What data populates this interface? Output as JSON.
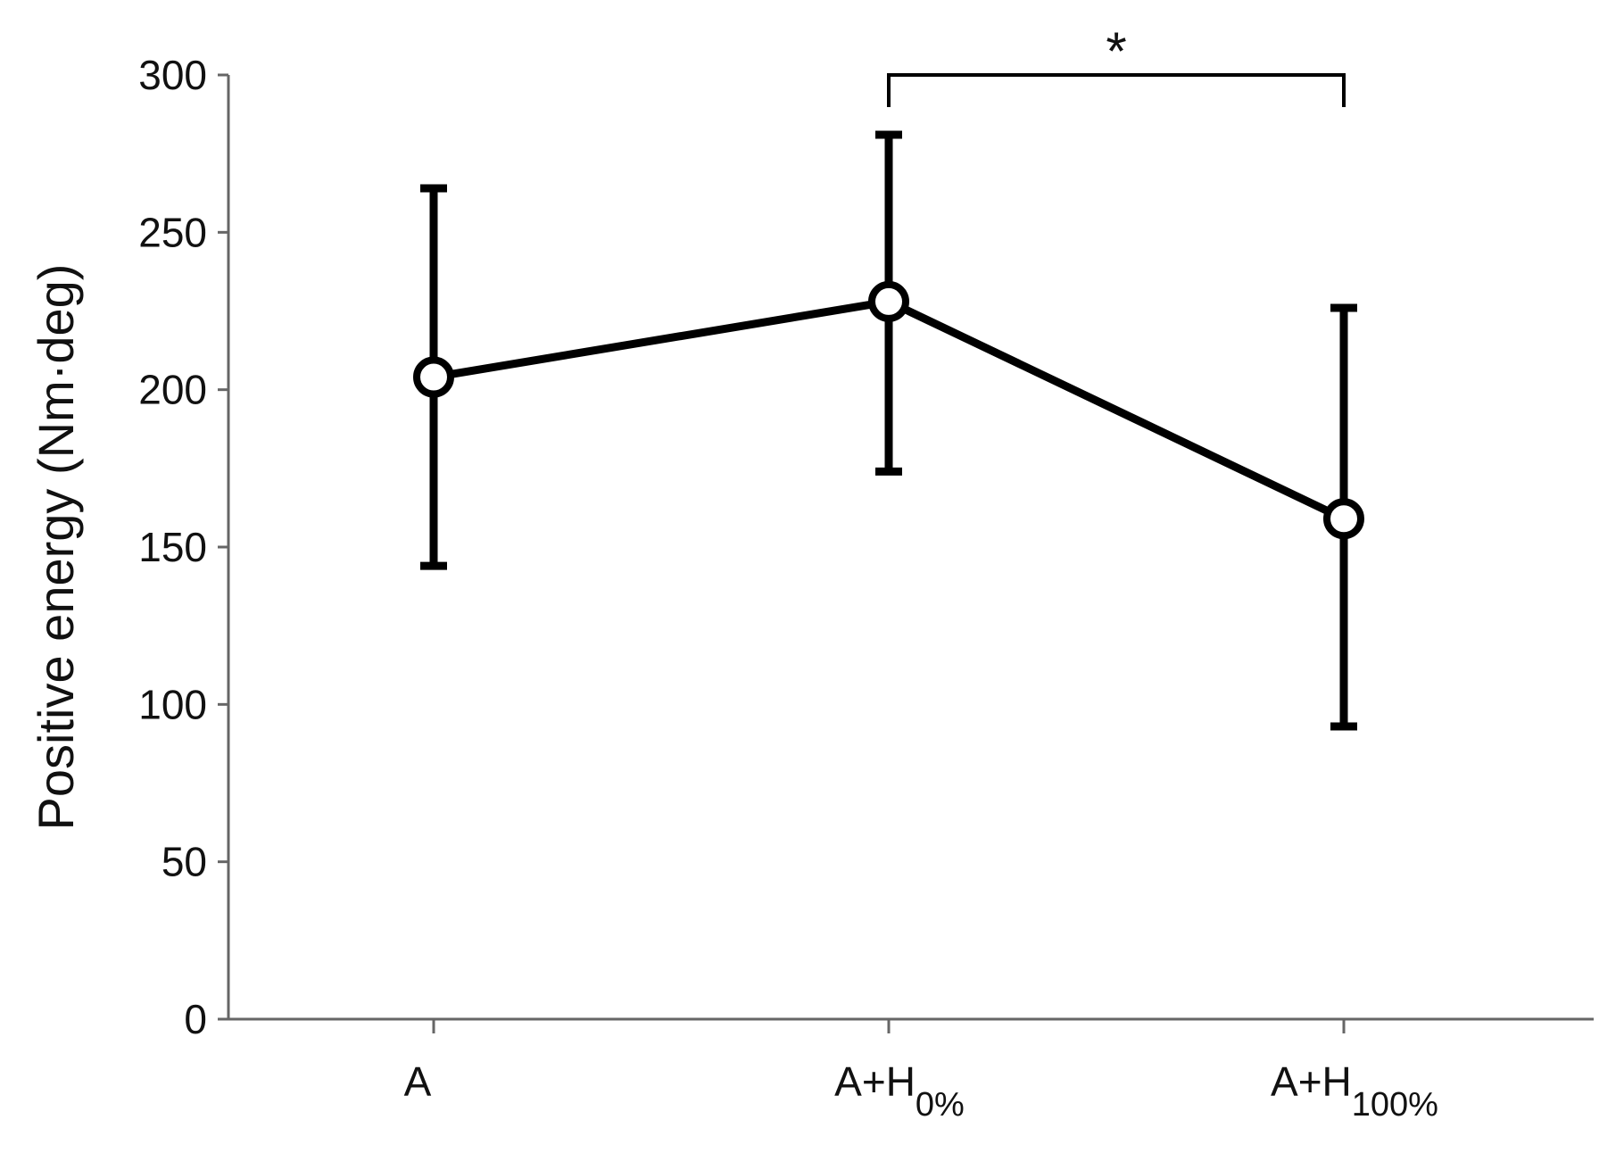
{
  "chart_data": {
    "type": "line",
    "title": "",
    "xlabel": "",
    "ylabel": "Positive energy (Nm·deg)",
    "ylim": [
      0,
      300
    ],
    "yticks": [
      "0",
      "50",
      "100",
      "150",
      "200",
      "250",
      "300"
    ],
    "ytick_values": [
      0,
      50,
      100,
      150,
      200,
      250,
      300
    ],
    "categories": [
      {
        "main": "A",
        "sub": ""
      },
      {
        "main": "A+H",
        "sub": "0%"
      },
      {
        "main": "A+H",
        "sub": "100%"
      }
    ],
    "series": [
      {
        "values": [
          204,
          228,
          159
        ],
        "error_low": [
          144,
          174,
          93
        ],
        "error_high": [
          264,
          281,
          226
        ]
      }
    ],
    "significance": {
      "from": 1,
      "to": 2,
      "label": "*",
      "level": 300
    },
    "grid": false,
    "legend": "none",
    "line_color": "#000000",
    "axis_color": "#666666"
  }
}
